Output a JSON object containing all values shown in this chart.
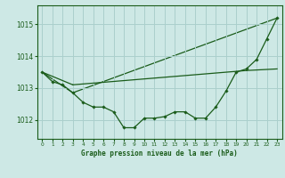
{
  "title": "Graphe pression niveau de la mer (hPa)",
  "background_color": "#cde8e5",
  "grid_color": "#aacfcc",
  "line_color": "#1a5c1a",
  "marker_color": "#1a5c1a",
  "xlim": [
    -0.5,
    23.5
  ],
  "ylim": [
    1011.4,
    1015.6
  ],
  "yticks": [
    1012,
    1013,
    1014,
    1015
  ],
  "xticks": [
    0,
    1,
    2,
    3,
    4,
    5,
    6,
    7,
    8,
    9,
    10,
    11,
    12,
    13,
    14,
    15,
    16,
    17,
    18,
    19,
    20,
    21,
    22,
    23
  ],
  "series1": [
    1013.5,
    1013.2,
    1013.1,
    1012.85,
    1012.55,
    1012.4,
    1012.4,
    1012.25,
    1011.75,
    1011.75,
    1012.05,
    1012.05,
    1012.1,
    1012.25,
    1012.25,
    1012.05,
    1012.05,
    1012.4,
    1012.9,
    1013.5,
    1013.6,
    1013.9,
    1014.55,
    1015.2
  ],
  "series2_x": [
    0,
    3,
    20,
    23
  ],
  "series2_y": [
    1013.5,
    1013.1,
    1013.55,
    1013.6
  ],
  "series3_x": [
    0,
    3,
    23
  ],
  "series3_y": [
    1013.5,
    1012.85,
    1015.2
  ]
}
